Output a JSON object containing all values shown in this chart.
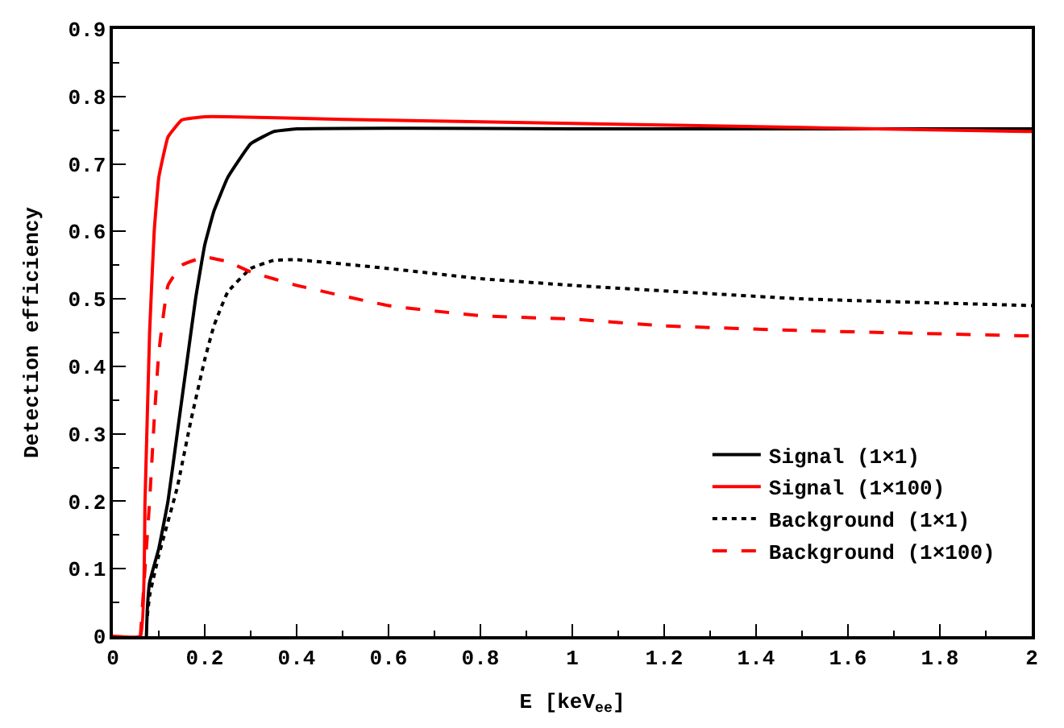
{
  "chart_data": {
    "type": "line",
    "xlabel": "E [keV$_{ee}$]",
    "ylabel": "Detection efficiency",
    "xlim": [
      0,
      2
    ],
    "xticks": [
      0,
      0.2,
      0.4,
      0.6,
      0.8,
      1,
      1.2,
      1.4,
      1.6,
      1.8,
      2
    ],
    "ylim": [
      0,
      0.9
    ],
    "yticks": [
      0,
      0.1,
      0.2,
      0.3,
      0.4,
      0.5,
      0.6,
      0.7,
      0.8,
      0.9
    ],
    "legend": "bottom right",
    "marker": "none",
    "series": [
      {
        "name": "Signal (1×1)",
        "color": "#000000",
        "line_style": "solid",
        "x": [
          0.073,
          0.075,
          0.08,
          0.1,
          0.12,
          0.14,
          0.16,
          0.18,
          0.2,
          0.22,
          0.25,
          0.3,
          0.35,
          0.4,
          0.6,
          1,
          1.5,
          2
        ],
        "values": [
          0,
          0.04,
          0.08,
          0.13,
          0.2,
          0.3,
          0.4,
          0.5,
          0.58,
          0.63,
          0.68,
          0.73,
          0.748,
          0.752,
          0.753,
          0.752,
          0.752,
          0.752
        ]
      },
      {
        "name": "Signal (1×100)",
        "color": "#ff0000",
        "line_style": "solid",
        "x": [
          0,
          0.06,
          0.07,
          0.08,
          0.09,
          0.1,
          0.12,
          0.15,
          0.2,
          0.25,
          0.5,
          1,
          1.5,
          2
        ],
        "values": [
          0,
          0,
          0.2,
          0.45,
          0.6,
          0.68,
          0.74,
          0.765,
          0.77,
          0.77,
          0.766,
          0.76,
          0.754,
          0.748
        ]
      },
      {
        "name": "Background (1×1)",
        "color": "#000000",
        "line_style": "dotted",
        "x": [
          0.075,
          0.08,
          0.1,
          0.14,
          0.17,
          0.2,
          0.22,
          0.25,
          0.3,
          0.35,
          0.4,
          0.6,
          0.8,
          1,
          1.5,
          2
        ],
        "values": [
          0.03,
          0.06,
          0.12,
          0.22,
          0.32,
          0.41,
          0.46,
          0.51,
          0.545,
          0.557,
          0.558,
          0.545,
          0.53,
          0.52,
          0.5,
          0.49
        ]
      },
      {
        "name": "Background (1×100)",
        "color": "#ff0000",
        "line_style": "dashed",
        "x": [
          0.06,
          0.07,
          0.08,
          0.09,
          0.1,
          0.12,
          0.15,
          0.2,
          0.25,
          0.3,
          0.4,
          0.6,
          0.8,
          1,
          1.2,
          1.5,
          2
        ],
        "values": [
          0,
          0.1,
          0.2,
          0.32,
          0.42,
          0.52,
          0.55,
          0.562,
          0.555,
          0.54,
          0.52,
          0.49,
          0.475,
          0.47,
          0.46,
          0.453,
          0.445
        ]
      }
    ]
  }
}
